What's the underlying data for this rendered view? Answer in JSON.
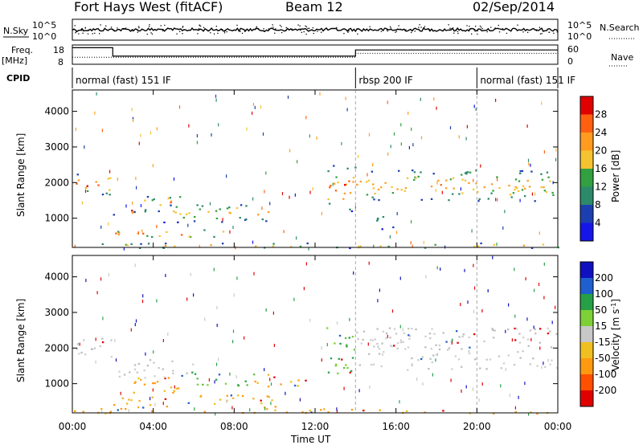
{
  "header": {
    "title": "Fort Hays West (fitACF)",
    "beam": "Beam 12",
    "date": "02/Sep/2014"
  },
  "nsky_panel": {
    "left_label": "N.Sky",
    "right_label": "N.Search",
    "left_ticks": [
      "10^5",
      "10^0"
    ],
    "right_ticks": [
      "10^5",
      "10^0"
    ]
  },
  "freq_panel": {
    "left_label": "Freq.",
    "left_unit": "[MHz]",
    "right_label": "Nave",
    "left_ticks": [
      "18",
      "8"
    ],
    "right_ticks": [
      "60",
      "0"
    ],
    "freq_mhz": [
      {
        "from": 0,
        "to": 2.0,
        "value": 16.6
      },
      {
        "from": 2.0,
        "to": 14.0,
        "value": 12.2
      },
      {
        "from": 14.0,
        "to": 24.0,
        "value": 15.4
      }
    ],
    "nave": [
      {
        "from": 0,
        "to": 2.0,
        "value": 22
      },
      {
        "from": 2.0,
        "to": 14.0,
        "value": 22
      },
      {
        "from": 14.0,
        "to": 24.0,
        "value": 34
      }
    ]
  },
  "cpid": {
    "label": "CPID",
    "segments": [
      {
        "from": 0,
        "to": 14.0,
        "text": "normal (fast) 151 IF"
      },
      {
        "from": 14.0,
        "to": 20.0,
        "text": "rbsp 200 IF"
      },
      {
        "from": 20.0,
        "to": 24.0,
        "text": "normal (fast) 151 IF"
      }
    ]
  },
  "chart_data": [
    {
      "type": "heatmap",
      "quantity": "Power",
      "ylabel": "Slant Range [km]",
      "xlabel": "Time UT",
      "xlim": [
        0,
        24
      ],
      "ylim": [
        180,
        4600
      ],
      "yticks": [
        1000,
        2000,
        3000,
        4000
      ],
      "colorbar": {
        "label": "Power [dB]",
        "ticks": [
          "28",
          "24",
          "20",
          "16",
          "12",
          "8",
          "4"
        ],
        "colors": [
          "#e00000",
          "#ff6010",
          "#ff9c20",
          "#f5c330",
          "#32a040",
          "#2c8a6a",
          "#1c3fb0",
          "#1515e8"
        ]
      },
      "echo_bands": [
        {
          "t0": 0.0,
          "t1": 1.95,
          "r0": 1650,
          "r1": 2300,
          "peak": 0.85
        },
        {
          "t0": 1.9,
          "t1": 3.2,
          "r0": 1100,
          "r1": 1350,
          "peak": 0.9
        },
        {
          "t0": 3.0,
          "t1": 5.5,
          "r0": 1200,
          "r1": 1700,
          "peak": 0.6
        },
        {
          "t0": 4.5,
          "t1": 10.0,
          "r0": 900,
          "r1": 1450,
          "peak": 0.55
        },
        {
          "t0": 2.0,
          "t1": 7.8,
          "r0": 450,
          "r1": 700,
          "peak": 0.75
        },
        {
          "t0": 12.5,
          "t1": 14.0,
          "r0": 1200,
          "r1": 2500,
          "peak": 0.85
        },
        {
          "t0": 14.0,
          "t1": 24.0,
          "r0": 1500,
          "r1": 2400,
          "peak": 0.65
        },
        {
          "t0": 15.0,
          "t1": 16.5,
          "r0": 700,
          "r1": 1100,
          "peak": 0.45
        },
        {
          "t0": 0.0,
          "t1": 24.0,
          "r0": 180,
          "r1": 320,
          "peak": 0.6
        }
      ]
    },
    {
      "type": "heatmap",
      "quantity": "Velocity",
      "ylabel": "Slant Range [km]",
      "xlabel": "Time UT",
      "xlim": [
        0,
        24
      ],
      "ylim": [
        180,
        4600
      ],
      "yticks": [
        1000,
        2000,
        3000,
        4000
      ],
      "colorbar": {
        "label": "Velocity [m s^-1]",
        "ticks": [
          "200",
          "100",
          "50",
          "15",
          "-15",
          "-50",
          "-100",
          "-200"
        ],
        "colors": [
          "#1010c0",
          "#1f5fd0",
          "#26a046",
          "#7ed037",
          "#c8c8c8",
          "#f0c020",
          "#ff9a10",
          "#ff5000",
          "#e00000"
        ]
      },
      "echo_bands": [
        {
          "t0": 0.0,
          "t1": 2.0,
          "r0": 1650,
          "r1": 2300,
          "vel": "gray"
        },
        {
          "t0": 1.9,
          "t1": 3.3,
          "r0": 1100,
          "r1": 1400,
          "vel": "gray"
        },
        {
          "t0": 3.0,
          "t1": 6.0,
          "r0": 1150,
          "r1": 1700,
          "vel": "gray"
        },
        {
          "t0": 3.0,
          "t1": 5.8,
          "r0": 700,
          "r1": 1250,
          "vel": "orange"
        },
        {
          "t0": 5.8,
          "t1": 9.0,
          "r0": 950,
          "r1": 1350,
          "vel": "green"
        },
        {
          "t0": 9.0,
          "t1": 11.5,
          "r0": 900,
          "r1": 1300,
          "vel": "orange"
        },
        {
          "t0": 2.0,
          "t1": 10.0,
          "r0": 350,
          "r1": 700,
          "vel": "orange"
        },
        {
          "t0": 12.5,
          "t1": 14.0,
          "r0": 1250,
          "r1": 2600,
          "vel": "green"
        },
        {
          "t0": 14.0,
          "t1": 24.0,
          "r0": 1400,
          "r1": 2600,
          "vel": "gray"
        },
        {
          "t0": 0.0,
          "t1": 24.0,
          "r0": 180,
          "r1": 320,
          "vel": "orange"
        }
      ]
    }
  ],
  "x_axis": {
    "label": "Time UT",
    "ticks": [
      "00:00",
      "04:00",
      "08:00",
      "12:00",
      "16:00",
      "20:00",
      "00:00"
    ]
  }
}
